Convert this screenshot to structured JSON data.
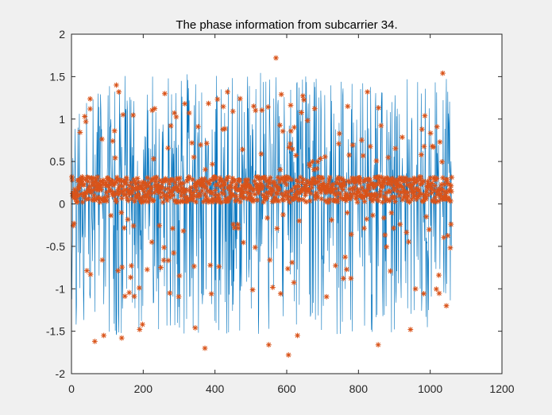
{
  "colors": {
    "line_series": "#0072bd",
    "marker_series": "#d95319",
    "axes_background": "#ffffff",
    "figure_background": "#f0f0f0",
    "axis_color": "#262626"
  },
  "chart_data": {
    "type": "line",
    "title": "The phase information from subcarrier 34.",
    "xlabel": "",
    "ylabel": "",
    "xlim": [
      0,
      1200
    ],
    "ylim": [
      -2,
      2
    ],
    "xticks": [
      0,
      200,
      400,
      600,
      800,
      1000,
      1200
    ],
    "yticks": [
      -2,
      -1.5,
      -1,
      -0.5,
      0,
      0.5,
      1,
      1.5,
      2
    ],
    "xtick_labels": [
      "0",
      "200",
      "400",
      "600",
      "800",
      "1000",
      "1200"
    ],
    "ytick_labels": [
      "-2",
      "-1.5",
      "-1",
      "-0.5",
      "0",
      "0.5",
      "1",
      "1.5",
      "2"
    ],
    "grid": false,
    "legend": "none",
    "n_samples": 1060,
    "series": [
      {
        "style": "solid-line",
        "description_values": "dense oscillating phase trace across x = 1..1060, values mostly spanning about -1.55 to 1.55"
      },
      {
        "style": "asterisk-markers",
        "description_values": "one marker per sample; most clustered between about 0.0 and 0.3, with outliers reaching about -1.8 to 1.72"
      }
    ],
    "notable_points": [
      {
        "x": 20,
        "y": 0.28
      },
      {
        "x": 40,
        "y": 0.97
      },
      {
        "x": 52,
        "y": 1.12
      },
      {
        "x": 65,
        "y": -1.62
      },
      {
        "x": 90,
        "y": -1.55
      },
      {
        "x": 125,
        "y": 1.4
      },
      {
        "x": 132,
        "y": 1.32
      },
      {
        "x": 140,
        "y": -1.58
      },
      {
        "x": 190,
        "y": -1.48
      },
      {
        "x": 198,
        "y": -1.42
      },
      {
        "x": 260,
        "y": 1.3
      },
      {
        "x": 345,
        "y": -1.46
      },
      {
        "x": 372,
        "y": -1.7
      },
      {
        "x": 435,
        "y": 1.32
      },
      {
        "x": 470,
        "y": 1.24
      },
      {
        "x": 550,
        "y": -1.66
      },
      {
        "x": 570,
        "y": 1.72
      },
      {
        "x": 605,
        "y": -1.78
      },
      {
        "x": 630,
        "y": -1.55
      },
      {
        "x": 770,
        "y": 1.15
      },
      {
        "x": 825,
        "y": 1.32
      },
      {
        "x": 855,
        "y": -1.66
      },
      {
        "x": 945,
        "y": -1.48
      },
      {
        "x": 1035,
        "y": 1.54
      },
      {
        "x": 1045,
        "y": -1.2
      },
      {
        "x": 1058,
        "y": -0.24
      }
    ]
  }
}
